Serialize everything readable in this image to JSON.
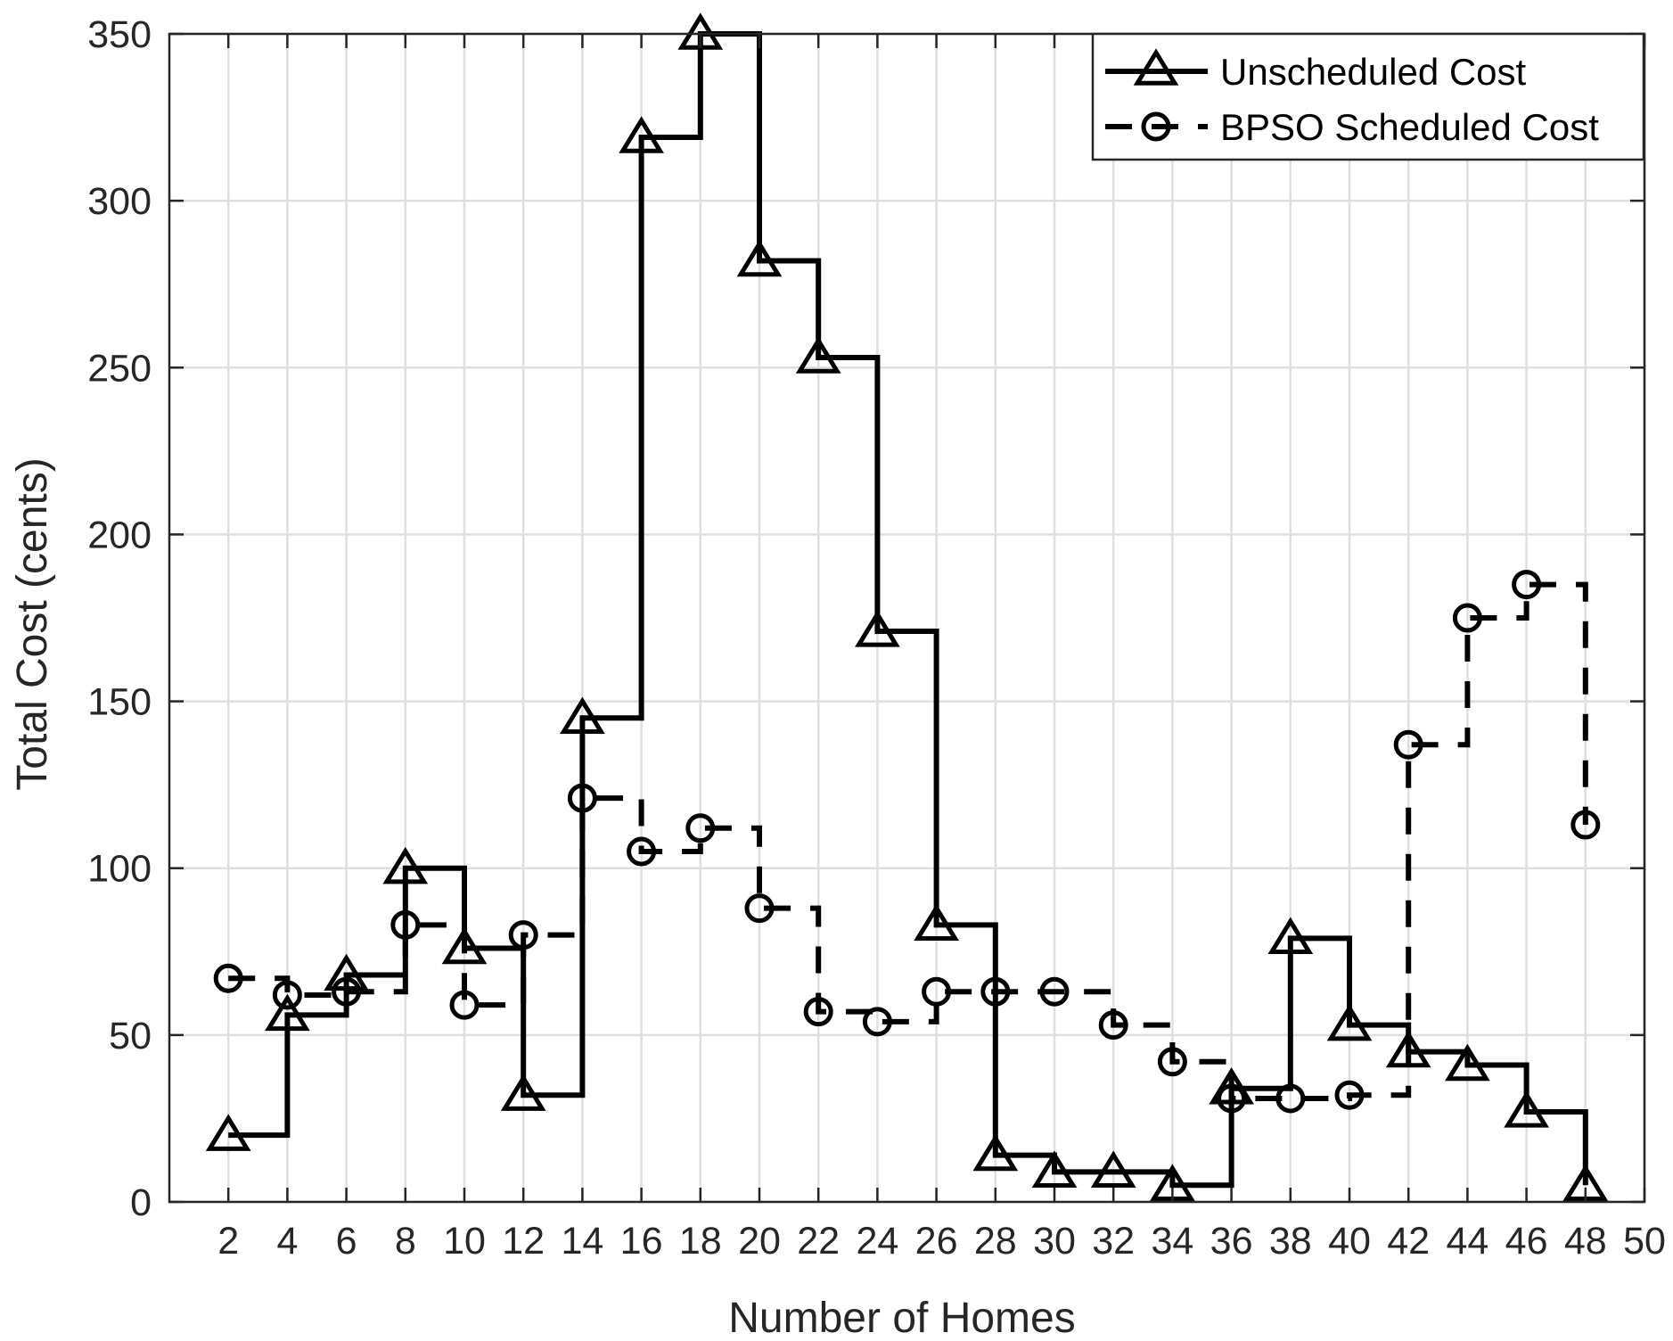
{
  "chart_data": {
    "type": "line",
    "step": true,
    "xlabel": "Number of Homes",
    "ylabel": "Total Cost (cents)",
    "xlim": [
      0,
      50
    ],
    "ylim": [
      0,
      350
    ],
    "xticks": [
      2,
      4,
      6,
      8,
      10,
      12,
      14,
      16,
      18,
      20,
      22,
      24,
      26,
      28,
      30,
      32,
      34,
      36,
      38,
      40,
      42,
      44,
      46,
      48,
      50
    ],
    "yticks": [
      0,
      50,
      100,
      150,
      200,
      250,
      300,
      350
    ],
    "grid": true,
    "legend_position": "top-right",
    "x": [
      2,
      4,
      6,
      8,
      10,
      12,
      14,
      16,
      18,
      20,
      22,
      24,
      26,
      28,
      30,
      32,
      34,
      36,
      38,
      40,
      42,
      44,
      46,
      48
    ],
    "series": [
      {
        "name": "Unscheduled Cost",
        "line_style": "solid",
        "marker": "triangle",
        "color": "#000000",
        "values": [
          20,
          56,
          68,
          100,
          76,
          32,
          145,
          319,
          350,
          282,
          253,
          171,
          83,
          14,
          9,
          9,
          5,
          34,
          79,
          53,
          45,
          41,
          27,
          5
        ]
      },
      {
        "name": "BPSO Scheduled Cost",
        "line_style": "dashed",
        "marker": "circle",
        "color": "#000000",
        "values": [
          67,
          62,
          63,
          83,
          59,
          80,
          121,
          105,
          112,
          88,
          57,
          54,
          63,
          63,
          63,
          53,
          42,
          31,
          31,
          32,
          137,
          175,
          185,
          113
        ]
      }
    ]
  },
  "colors": {
    "grid": "#dfdfdf",
    "axis": "#262626",
    "series": "#000000"
  }
}
